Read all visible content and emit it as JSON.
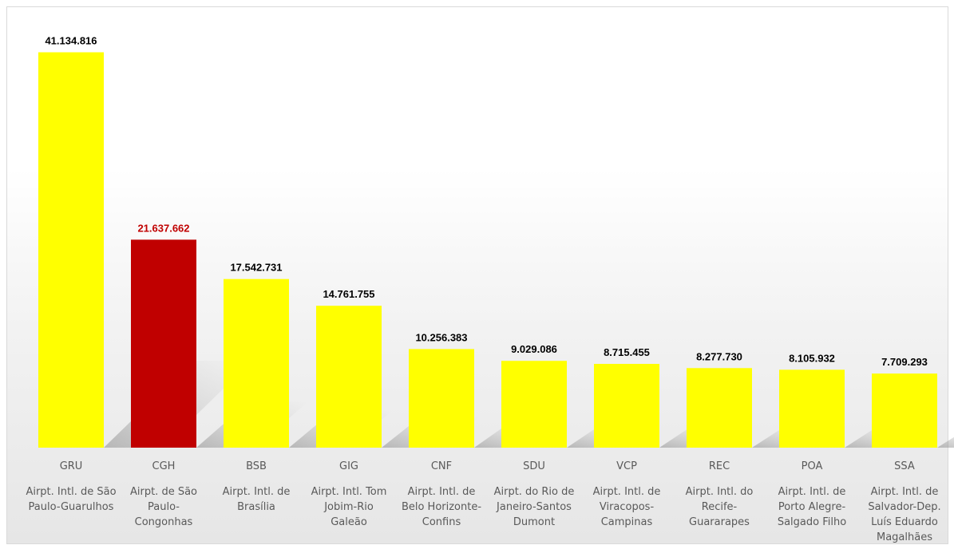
{
  "chart_data": {
    "type": "bar",
    "title": "",
    "xlabel": "",
    "ylabel": "",
    "ylim": [
      0,
      44000000
    ],
    "grid": false,
    "legend": "none",
    "colors": {
      "default": "#ffff00",
      "highlight": "#c00000",
      "label_default": "#000000",
      "label_highlight": "#c00000",
      "axis_text": "#595959"
    },
    "categories": [
      {
        "code": "GRU",
        "name": "Airpt. Intl. de São Paulo-Guarulhos",
        "name_lines": [
          "Airpt. Intl. de São",
          "Paulo-Guarulhos"
        ],
        "value": 41134816,
        "label": "41.134.816",
        "highlight": false
      },
      {
        "code": "CGH",
        "name": "Airpt. de São Paulo-Congonhas",
        "name_lines": [
          "Airpt. de São",
          "Paulo-",
          "Congonhas"
        ],
        "value": 21637662,
        "label": "21.637.662",
        "highlight": true
      },
      {
        "code": "BSB",
        "name": "Airpt. Intl. de Brasília",
        "name_lines": [
          "Airpt. Intl. de",
          "Brasília"
        ],
        "value": 17542731,
        "label": "17.542.731",
        "highlight": false
      },
      {
        "code": "GIG",
        "name": "Airpt. Intl. Tom Jobim-Rio Galeão",
        "name_lines": [
          "Airpt. Intl. Tom",
          "Jobim-Rio",
          "Galeão"
        ],
        "value": 14761755,
        "label": "14.761.755",
        "highlight": false
      },
      {
        "code": "CNF",
        "name": "Airpt. Intl. de Belo Horizonte-Confins",
        "name_lines": [
          "Airpt. Intl. de",
          "Belo Horizonte-",
          "Confins"
        ],
        "value": 10256383,
        "label": "10.256.383",
        "highlight": false
      },
      {
        "code": "SDU",
        "name": "Airpt. do Rio de Janeiro-Santos Dumont",
        "name_lines": [
          "Airpt. do Rio de",
          "Janeiro-Santos",
          "Dumont"
        ],
        "value": 9029086,
        "label": "9.029.086",
        "highlight": false
      },
      {
        "code": "VCP",
        "name": "Airpt. Intl. de Viracopos-Campinas",
        "name_lines": [
          "Airpt. Intl. de",
          "Viracopos-",
          "Campinas"
        ],
        "value": 8715455,
        "label": "8.715.455",
        "highlight": false
      },
      {
        "code": "REC",
        "name": "Airpt. Intl. do Recife-Guararapes",
        "name_lines": [
          "Airpt. Intl. do",
          "Recife-",
          "Guararapes"
        ],
        "value": 8277730,
        "label": "8.277.730",
        "highlight": false
      },
      {
        "code": "POA",
        "name": "Airpt. Intl. de Porto Alegre-Salgado Filho",
        "name_lines": [
          "Airpt. Intl. de",
          "Porto Alegre-",
          "Salgado Filho"
        ],
        "value": 8105932,
        "label": "8.105.932",
        "highlight": false
      },
      {
        "code": "SSA",
        "name": "Airpt. Intl. de Salvador-Dep. Luís Eduardo Magalhães",
        "name_lines": [
          "Airpt. Intl. de",
          "Salvador-Dep.",
          "Luís Eduardo",
          "Magalhães"
        ],
        "value": 7709293,
        "label": "7.709.293",
        "highlight": false
      }
    ]
  }
}
